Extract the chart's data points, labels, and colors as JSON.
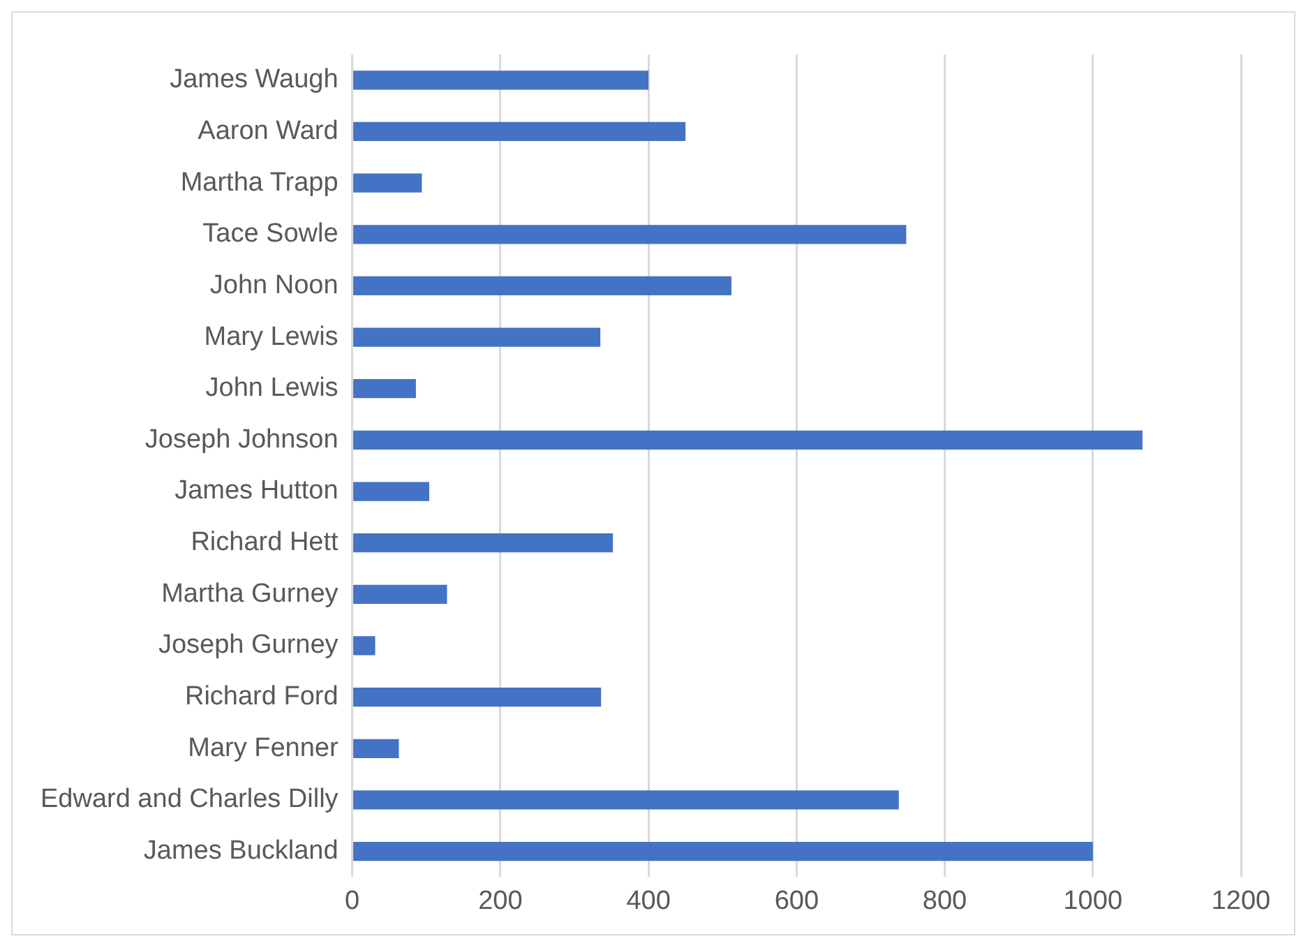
{
  "chart_data": {
    "type": "bar",
    "orientation": "horizontal",
    "categories": [
      "James Waugh",
      "Aaron Ward",
      "Martha Trapp",
      "Tace Sowle",
      "John Noon",
      "Mary Lewis",
      "John Lewis",
      "Joseph Johnson",
      "James Hutton",
      "Richard Hett",
      "Martha Gurney",
      "Joseph Gurney",
      "Richard Ford",
      "Mary Fenner",
      "Edward and Charles Dilly",
      "James Buckland"
    ],
    "values": [
      400,
      450,
      94,
      748,
      512,
      335,
      86,
      1067,
      104,
      352,
      128,
      31,
      336,
      63,
      738,
      1000
    ],
    "color": "#4472c4",
    "xlim": [
      0,
      1200
    ],
    "xticks": [
      0,
      200,
      400,
      600,
      800,
      1000,
      1200
    ],
    "grid": "x",
    "legend": false
  }
}
